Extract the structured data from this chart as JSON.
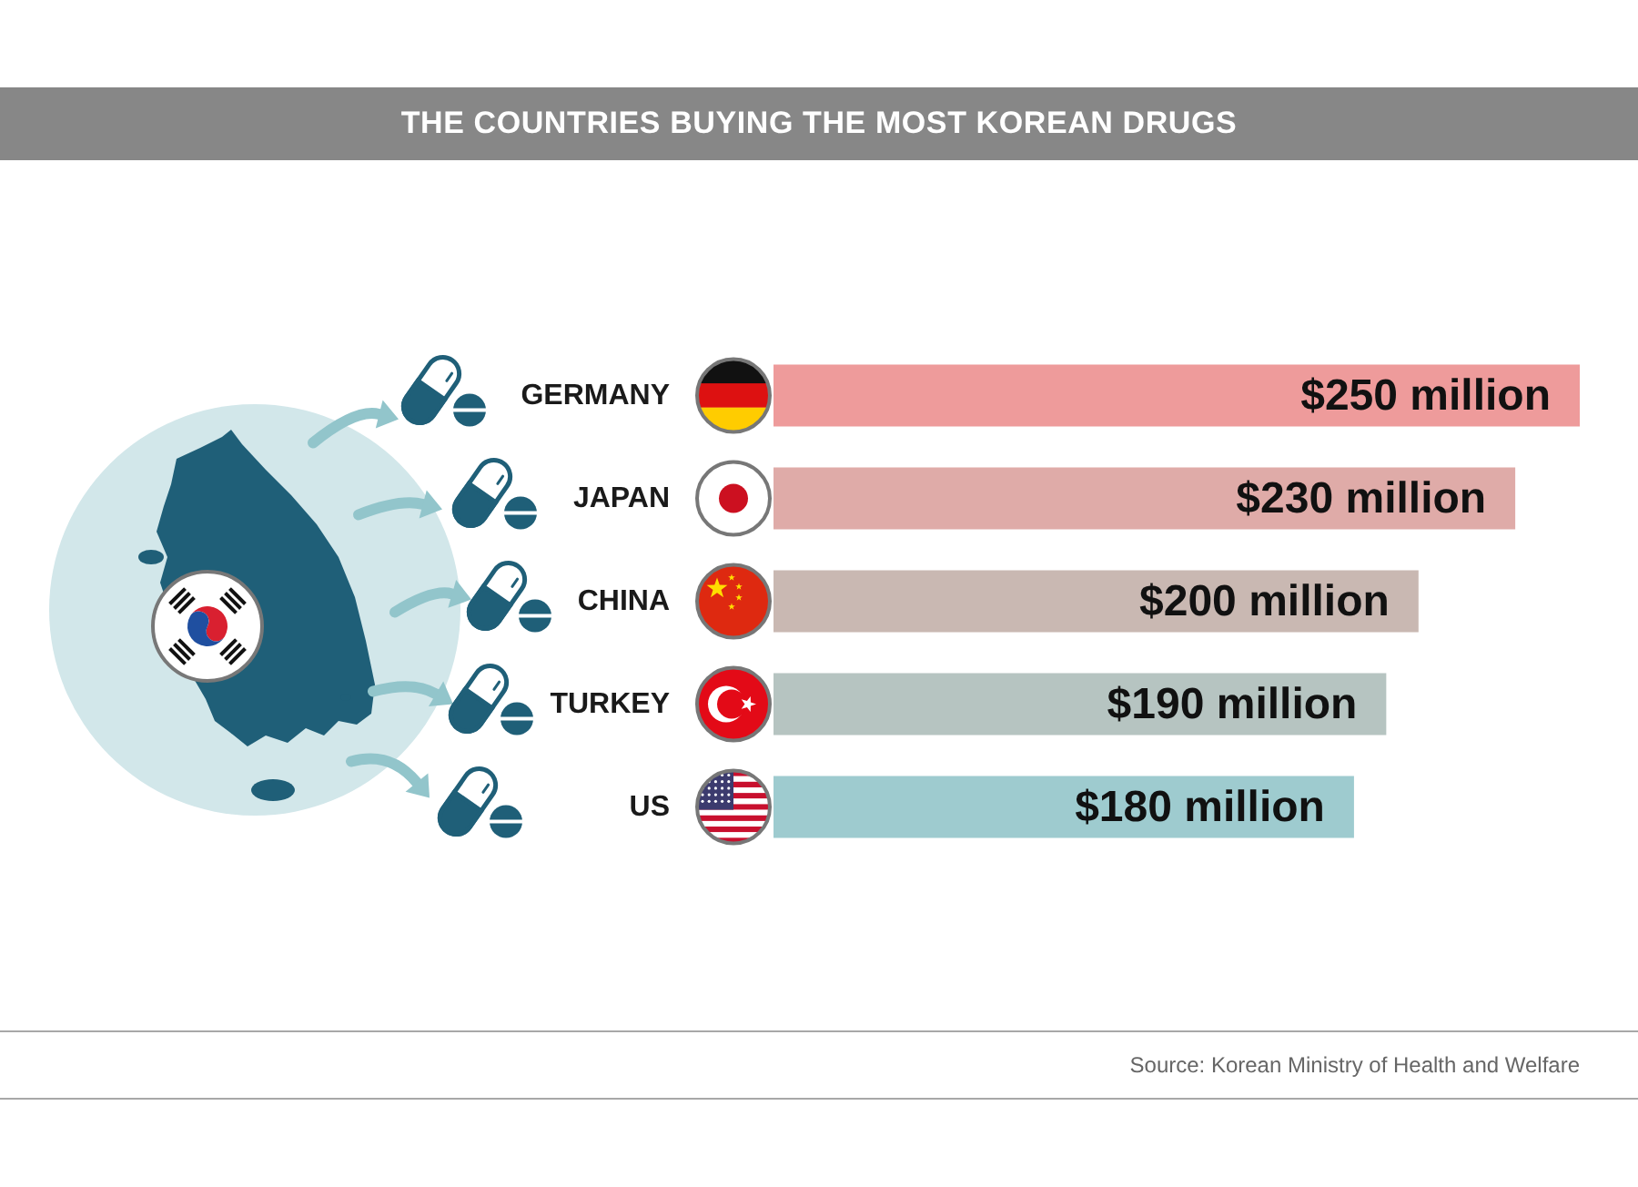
{
  "chart_data": {
    "type": "bar",
    "orientation": "horizontal",
    "title": "THE COUNTRIES BUYING THE MOST KOREAN DRUGS",
    "categories": [
      "GERMANY",
      "JAPAN",
      "CHINA",
      "TURKEY",
      "US"
    ],
    "values": [
      250,
      230,
      200,
      190,
      180
    ],
    "colors": [
      "#ee9b9b",
      "#dfaba8",
      "#c9b8b2",
      "#b6c4c1",
      "#9ecbcf"
    ],
    "value_labels": [
      "$250 million",
      "$230 million",
      "$200 million",
      "$190 million",
      "$180 million"
    ],
    "tick_labels": "y",
    "annotations": [
      "Source: Korean Ministry of Health and Welfare"
    ]
  }
}
